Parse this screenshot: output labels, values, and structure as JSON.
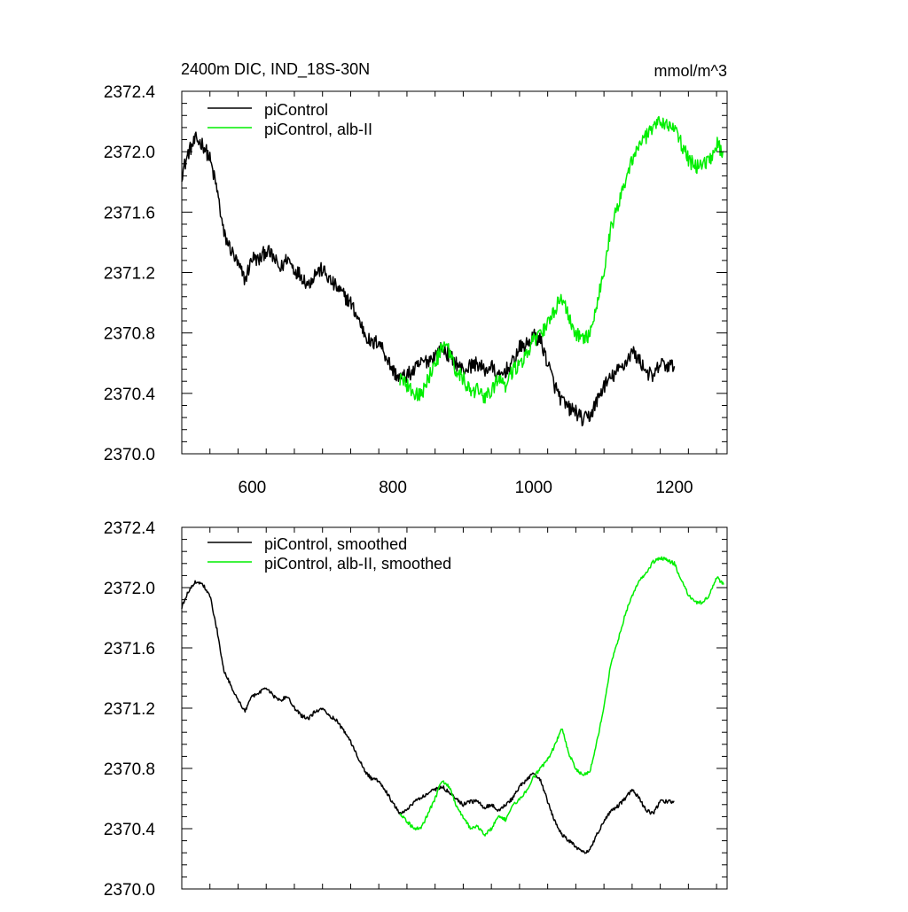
{
  "chart_data": [
    {
      "type": "line",
      "title": "2400m DIC, IND_18S-30N",
      "units": "mmol/m^3",
      "xlim": [
        500,
        1275
      ],
      "ylim": [
        2370.0,
        2372.4
      ],
      "x_ticks": [
        600,
        800,
        1000,
        1200
      ],
      "x_tick_labels": [
        "600",
        "800",
        "1000",
        "1200"
      ],
      "y_ticks": [
        2370.0,
        2370.4,
        2370.8,
        2371.2,
        2371.6,
        2372.0,
        2372.4
      ],
      "y_tick_labels": [
        "2370.0",
        "2370.4",
        "2370.8",
        "2371.2",
        "2371.6",
        "2372.0",
        "2372.4"
      ],
      "show_x_labels": true,
      "legend": "top-left",
      "series": [
        {
          "name": "piControl",
          "color": "#000000",
          "x": [
            500,
            510,
            520,
            530,
            540,
            550,
            560,
            570,
            580,
            590,
            600,
            610,
            620,
            630,
            640,
            650,
            660,
            670,
            680,
            690,
            700,
            710,
            720,
            730,
            740,
            750,
            760,
            770,
            780,
            790,
            800,
            810,
            820,
            830,
            840,
            850,
            860,
            870,
            880,
            890,
            900,
            910,
            920,
            930,
            940,
            950,
            960,
            970,
            980,
            990,
            1000,
            1010,
            1020,
            1030,
            1040,
            1050,
            1060,
            1070,
            1080,
            1090,
            1100,
            1110,
            1120,
            1130,
            1140,
            1150,
            1160,
            1170,
            1180,
            1190,
            1200
          ],
          "y": [
            2371.85,
            2372.0,
            2372.08,
            2372.05,
            2371.95,
            2371.75,
            2371.45,
            2371.35,
            2371.25,
            2371.15,
            2371.3,
            2371.28,
            2371.35,
            2371.3,
            2371.22,
            2371.3,
            2371.22,
            2371.18,
            2371.12,
            2371.2,
            2371.22,
            2371.15,
            2371.1,
            2371.05,
            2371.0,
            2370.9,
            2370.8,
            2370.72,
            2370.75,
            2370.65,
            2370.55,
            2370.5,
            2370.52,
            2370.55,
            2370.6,
            2370.62,
            2370.65,
            2370.7,
            2370.65,
            2370.6,
            2370.55,
            2370.58,
            2370.6,
            2370.55,
            2370.58,
            2370.5,
            2370.55,
            2370.6,
            2370.7,
            2370.72,
            2370.78,
            2370.75,
            2370.6,
            2370.45,
            2370.35,
            2370.3,
            2370.28,
            2370.22,
            2370.25,
            2370.35,
            2370.45,
            2370.5,
            2370.55,
            2370.6,
            2370.68,
            2370.62,
            2370.55,
            2370.5,
            2370.6,
            2370.58,
            2370.58
          ],
          "noise": 0.05
        },
        {
          "name": "piControl, alb-II",
          "color": "#00ee00",
          "x": [
            810,
            820,
            830,
            840,
            850,
            860,
            870,
            880,
            890,
            900,
            910,
            920,
            930,
            940,
            950,
            960,
            970,
            980,
            990,
            1000,
            1010,
            1020,
            1030,
            1040,
            1050,
            1060,
            1070,
            1080,
            1090,
            1100,
            1110,
            1120,
            1130,
            1140,
            1150,
            1160,
            1170,
            1180,
            1190,
            1200,
            1210,
            1220,
            1230,
            1240,
            1250,
            1260,
            1270
          ],
          "y": [
            2370.5,
            2370.45,
            2370.4,
            2370.38,
            2370.5,
            2370.6,
            2370.7,
            2370.68,
            2370.55,
            2370.5,
            2370.4,
            2370.42,
            2370.38,
            2370.4,
            2370.5,
            2370.45,
            2370.55,
            2370.6,
            2370.65,
            2370.75,
            2370.8,
            2370.85,
            2370.95,
            2371.05,
            2370.9,
            2370.8,
            2370.75,
            2370.8,
            2371.0,
            2371.2,
            2371.5,
            2371.65,
            2371.8,
            2371.95,
            2372.05,
            2372.1,
            2372.15,
            2372.2,
            2372.18,
            2372.15,
            2372.05,
            2371.95,
            2371.9,
            2371.92,
            2371.95,
            2372.05,
            2372.0
          ],
          "noise": 0.05
        }
      ]
    },
    {
      "type": "line",
      "title": "",
      "units": "",
      "xlim": [
        500,
        1275
      ],
      "ylim": [
        2370.0,
        2372.4
      ],
      "x_ticks": [
        600,
        800,
        1000,
        1200
      ],
      "x_tick_labels": [],
      "y_ticks": [
        2370.0,
        2370.4,
        2370.8,
        2371.2,
        2371.6,
        2372.0,
        2372.4
      ],
      "y_tick_labels": [
        "2370.0",
        "2370.4",
        "2370.8",
        "2371.2",
        "2371.6",
        "2372.0",
        "2372.4"
      ],
      "show_x_labels": false,
      "legend": "top-left",
      "series": [
        {
          "name": "piControl, smoothed",
          "color": "#000000",
          "x": [
            500,
            510,
            520,
            530,
            540,
            550,
            560,
            570,
            580,
            590,
            600,
            610,
            620,
            630,
            640,
            650,
            660,
            670,
            680,
            690,
            700,
            710,
            720,
            730,
            740,
            750,
            760,
            770,
            780,
            790,
            800,
            810,
            820,
            830,
            840,
            850,
            860,
            870,
            880,
            890,
            900,
            910,
            920,
            930,
            940,
            950,
            960,
            970,
            980,
            990,
            1000,
            1010,
            1020,
            1030,
            1040,
            1050,
            1060,
            1070,
            1080,
            1090,
            1100,
            1110,
            1120,
            1130,
            1140,
            1150,
            1160,
            1170,
            1180,
            1190,
            1200
          ],
          "y": [
            2371.87,
            2371.98,
            2372.04,
            2372.02,
            2371.95,
            2371.72,
            2371.45,
            2371.35,
            2371.25,
            2371.18,
            2371.28,
            2371.3,
            2371.34,
            2371.28,
            2371.25,
            2371.28,
            2371.2,
            2371.15,
            2371.13,
            2371.18,
            2371.2,
            2371.15,
            2371.12,
            2371.05,
            2370.98,
            2370.88,
            2370.78,
            2370.73,
            2370.72,
            2370.65,
            2370.57,
            2370.5,
            2370.52,
            2370.58,
            2370.6,
            2370.64,
            2370.66,
            2370.68,
            2370.64,
            2370.6,
            2370.56,
            2370.58,
            2370.58,
            2370.54,
            2370.56,
            2370.52,
            2370.56,
            2370.6,
            2370.68,
            2370.72,
            2370.77,
            2370.72,
            2370.58,
            2370.45,
            2370.36,
            2370.32,
            2370.28,
            2370.24,
            2370.26,
            2370.36,
            2370.45,
            2370.52,
            2370.55,
            2370.6,
            2370.66,
            2370.6,
            2370.52,
            2370.5,
            2370.58,
            2370.58,
            2370.58
          ],
          "noise": 0.012
        },
        {
          "name": "piControl, alb-II, smoothed",
          "color": "#00ee00",
          "x": [
            810,
            820,
            830,
            840,
            850,
            860,
            870,
            880,
            890,
            900,
            910,
            920,
            930,
            940,
            950,
            960,
            970,
            980,
            990,
            1000,
            1010,
            1020,
            1030,
            1040,
            1050,
            1060,
            1070,
            1080,
            1090,
            1100,
            1110,
            1120,
            1130,
            1140,
            1150,
            1160,
            1170,
            1180,
            1190,
            1200,
            1210,
            1220,
            1230,
            1240,
            1250,
            1260,
            1270
          ],
          "y": [
            2370.5,
            2370.45,
            2370.4,
            2370.4,
            2370.5,
            2370.6,
            2370.72,
            2370.68,
            2370.55,
            2370.48,
            2370.4,
            2370.42,
            2370.36,
            2370.4,
            2370.48,
            2370.46,
            2370.55,
            2370.6,
            2370.65,
            2370.74,
            2370.8,
            2370.86,
            2370.95,
            2371.07,
            2370.9,
            2370.8,
            2370.75,
            2370.78,
            2370.98,
            2371.2,
            2371.5,
            2371.65,
            2371.82,
            2371.95,
            2372.05,
            2372.1,
            2372.17,
            2372.2,
            2372.18,
            2372.16,
            2372.05,
            2371.95,
            2371.9,
            2371.9,
            2371.95,
            2372.07,
            2372.02
          ],
          "noise": 0.012
        }
      ]
    }
  ]
}
